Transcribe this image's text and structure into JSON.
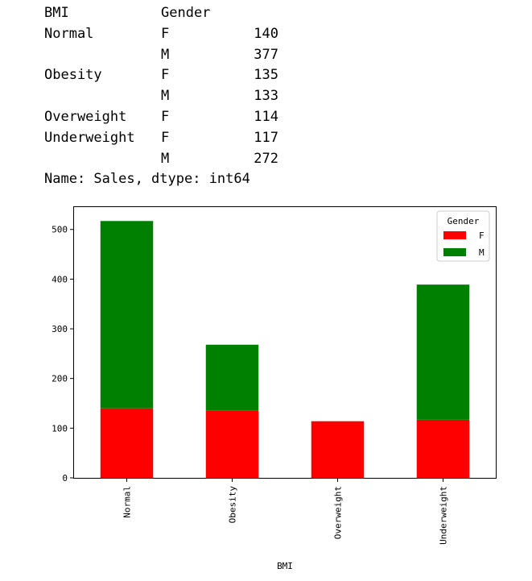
{
  "text_output": {
    "header": {
      "index_name": "BMI",
      "column_name": "Gender"
    },
    "rows": [
      {
        "bmi": "Normal",
        "gender": "F",
        "value": "140"
      },
      {
        "bmi": "",
        "gender": "M",
        "value": "377"
      },
      {
        "bmi": "Obesity",
        "gender": "F",
        "value": "135"
      },
      {
        "bmi": "",
        "gender": "M",
        "value": "133"
      },
      {
        "bmi": "Overweight",
        "gender": "F",
        "value": "114"
      },
      {
        "bmi": "Underweight",
        "gender": "F",
        "value": "117"
      },
      {
        "bmi": "",
        "gender": "M",
        "value": "272"
      }
    ],
    "footer": "Name: Sales, dtype: int64"
  },
  "chart_data": {
    "type": "bar",
    "stacked": true,
    "categories": [
      "Normal",
      "Obesity",
      "Overweight",
      "Underweight"
    ],
    "series": [
      {
        "name": "F",
        "color": "#ff0000",
        "values": [
          140,
          135,
          114,
          117
        ]
      },
      {
        "name": "M",
        "color": "#008000",
        "values": [
          377,
          133,
          0,
          272
        ]
      }
    ],
    "xlabel": "BMI",
    "ylabel": "",
    "ylim": [
      0,
      545
    ],
    "yticks": [
      0,
      100,
      200,
      300,
      400,
      500
    ],
    "grid": false,
    "legend": {
      "title": "Gender",
      "position": "upper-right"
    }
  }
}
